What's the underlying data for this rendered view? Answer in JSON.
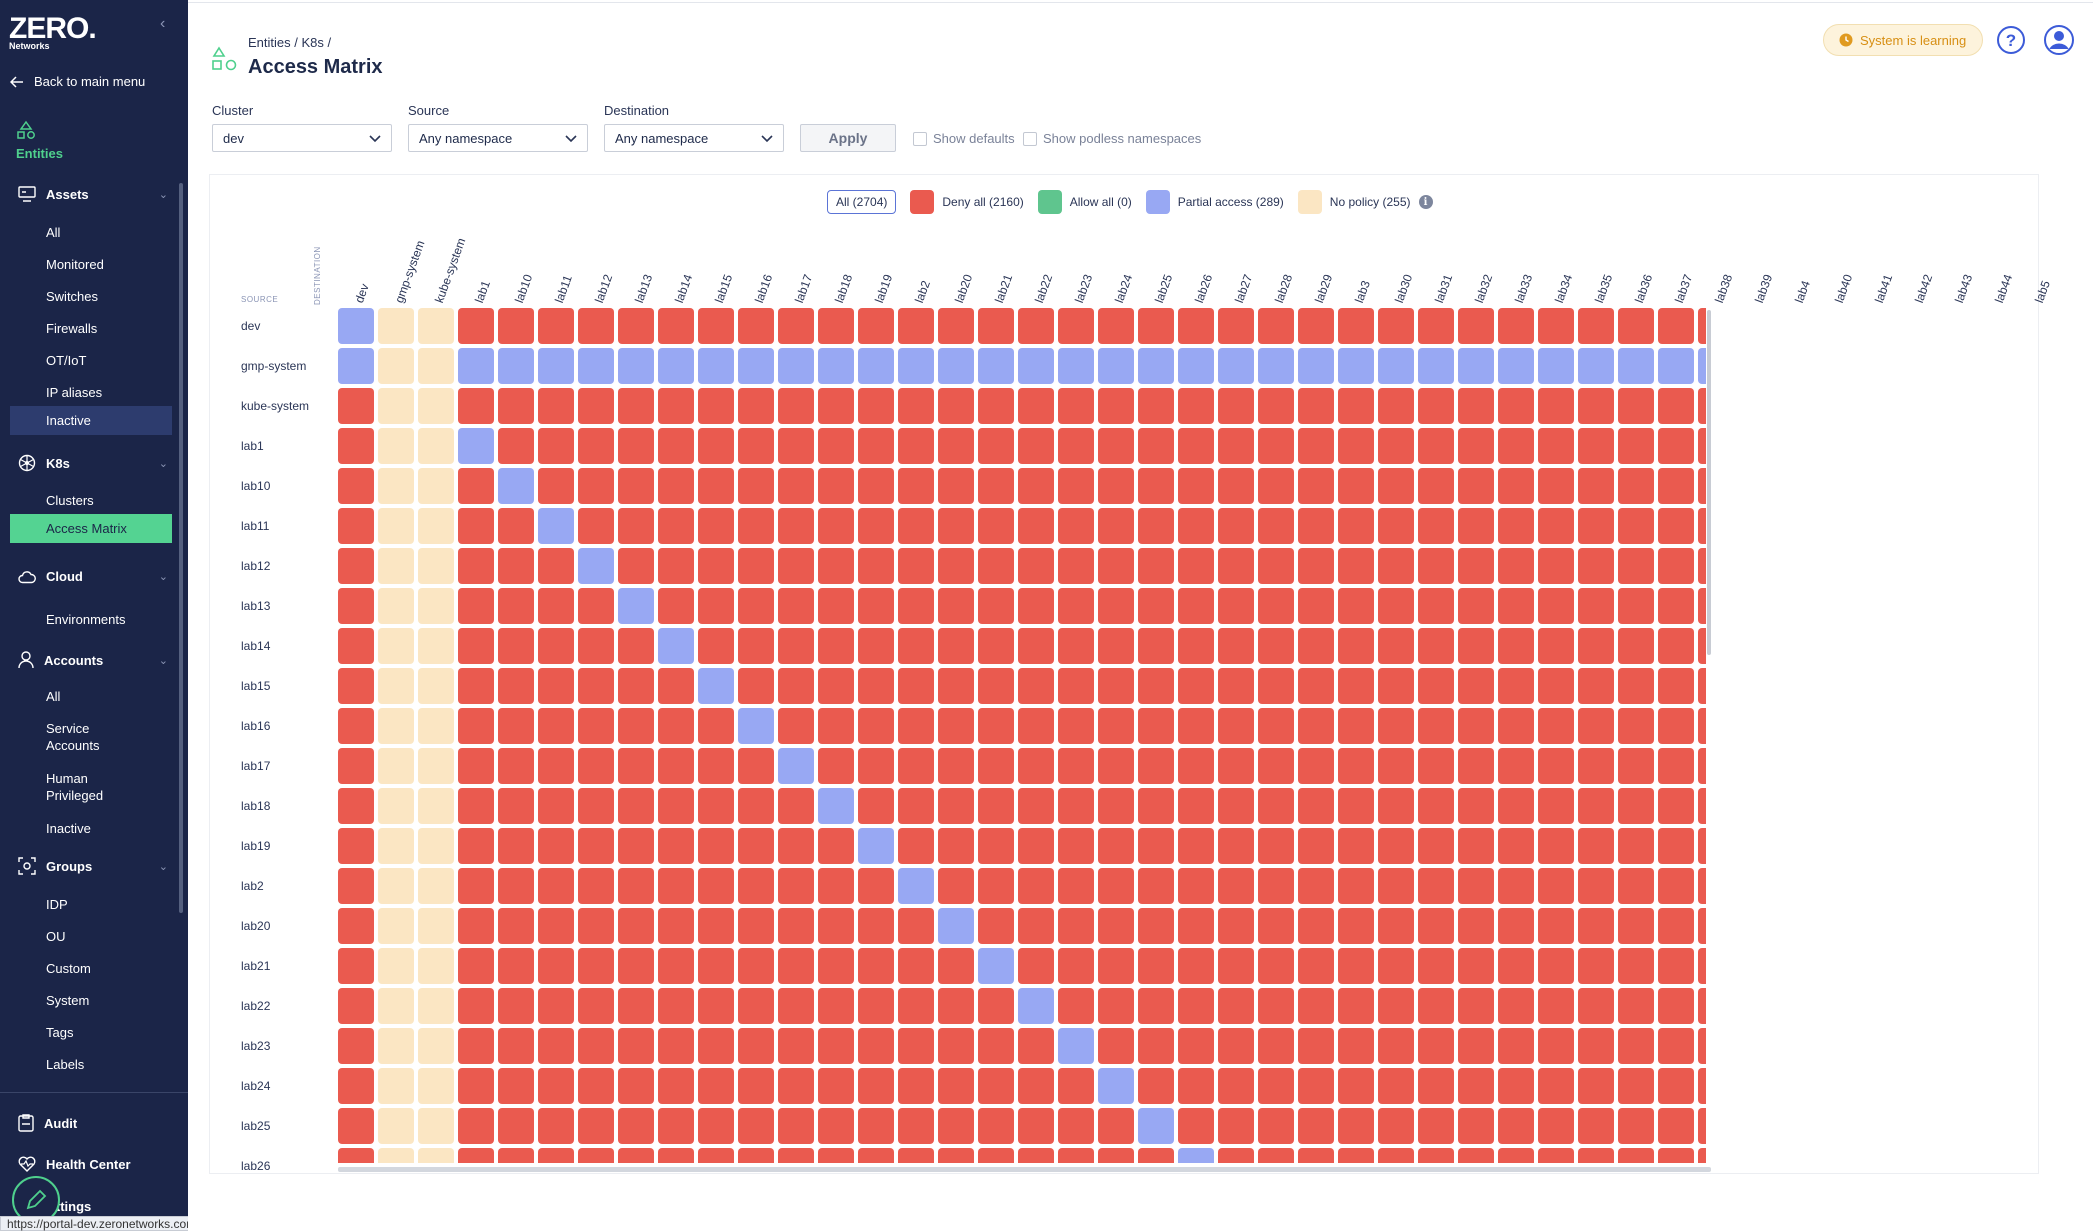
{
  "app": {
    "logo_text": "ZERO.",
    "logo_sub": "Networks",
    "back_label": "Back to main menu",
    "entities_label": "Entities"
  },
  "sidebar": {
    "assets": {
      "label": "Assets",
      "items": [
        "All",
        "Monitored",
        "Switches",
        "Firewalls",
        "OT/IoT",
        "IP aliases",
        "Inactive"
      ]
    },
    "k8s": {
      "label": "K8s",
      "items": [
        "Clusters",
        "Access Matrix"
      ]
    },
    "cloud": {
      "label": "Cloud",
      "items": [
        "Environments"
      ]
    },
    "accounts": {
      "label": "Accounts",
      "items": [
        "All",
        "Service Accounts",
        "Human Privileged",
        "Inactive"
      ]
    },
    "groups": {
      "label": "Groups",
      "items": [
        "IDP",
        "OU",
        "Custom",
        "System",
        "Tags",
        "Labels"
      ]
    },
    "bottom": {
      "audit": "Audit",
      "health": "Health Center",
      "settings": "Settings"
    }
  },
  "status_url": "https://portal-dev.zeronetworks.com/#/entities/assets/inactive",
  "header": {
    "breadcrumb": "Entities / K8s /",
    "title": "Access Matrix",
    "learning_badge": "System is learning"
  },
  "filters": {
    "cluster_label": "Cluster",
    "cluster_value": "dev",
    "source_label": "Source",
    "source_value": "Any namespace",
    "destination_label": "Destination",
    "destination_value": "Any namespace",
    "apply_label": "Apply",
    "show_defaults": "Show defaults",
    "show_podless": "Show podless namespaces"
  },
  "legend": {
    "all": "All (2704)",
    "deny": "Deny all (2160)",
    "allow": "Allow all (0)",
    "partial": "Partial access (289)",
    "nopolicy": "No policy (255)"
  },
  "colors": {
    "deny": "#ea5a4f",
    "allow": "#5fc58e",
    "partial": "#98a8f3",
    "nopolicy": "#fbe6c3",
    "accent": "#4fd08d",
    "sidebar": "#1b2548"
  },
  "matrix": {
    "axis_destination": "DESTINATION",
    "axis_source": "SOURCE",
    "columns": [
      "dev",
      "gmp-system",
      "kube-system",
      "lab1",
      "lab10",
      "lab11",
      "lab12",
      "lab13",
      "lab14",
      "lab15",
      "lab16",
      "lab17",
      "lab18",
      "lab19",
      "lab2",
      "lab20",
      "lab21",
      "lab22",
      "lab23",
      "lab24",
      "lab25",
      "lab26",
      "lab27",
      "lab28",
      "lab29",
      "lab3",
      "lab30",
      "lab31",
      "lab32",
      "lab33",
      "lab34",
      "lab35",
      "lab36",
      "lab37",
      "lab38",
      "lab39",
      "lab4",
      "lab40",
      "lab41",
      "lab42",
      "lab43",
      "lab44",
      "lab5"
    ],
    "rows": [
      "dev",
      "gmp-system",
      "kube-system",
      "lab1",
      "lab10",
      "lab11",
      "lab12",
      "lab13",
      "lab14",
      "lab15",
      "lab16",
      "lab17",
      "lab18",
      "lab19",
      "lab2",
      "lab20",
      "lab21",
      "lab22",
      "lab23",
      "lab24",
      "lab25",
      "lab26"
    ]
  }
}
